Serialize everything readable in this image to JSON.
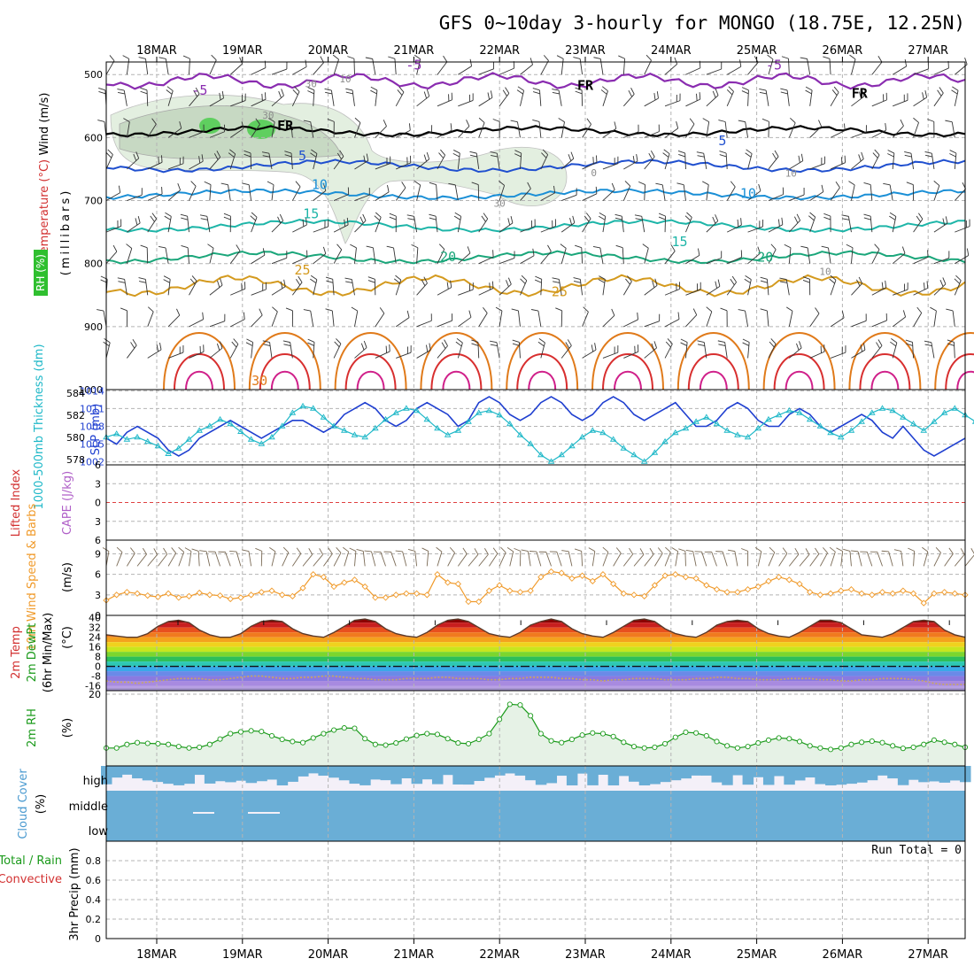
{
  "title": "GFS 0~10day 3-hourly for MONGO (18.75E, 12.25N)",
  "dates": [
    "18MAR",
    "19MAR",
    "20MAR",
    "21MAR",
    "22MAR",
    "23MAR",
    "24MAR",
    "25MAR",
    "26MAR",
    "27MAR"
  ],
  "colors": {
    "grid": "#b4b4b4",
    "temp_neg": "#8a2cb0",
    "temp_5": "#1f4fcf",
    "temp_10": "#1a8fd6",
    "temp_15": "#1db5a8",
    "temp_20": "#1aa67a",
    "temp_25": "#d49a1e",
    "temp_30": "#e07a1a",
    "temp_35": "#d82f2f",
    "temp_40": "#d0208a",
    "slp": "#1f3fd0",
    "thickness": "#1fb8c8",
    "wind10m": "#f09a2a",
    "rh2m": "#1a9a1a",
    "cloud": "#6aaed6",
    "rh_fill": "#e6f2e6"
  },
  "panels": {
    "upper": {
      "ylabel_left": [
        "RH (%)",
        "Temperature (°C)",
        "Wind (m/s)"
      ],
      "ylabel_right": "(millibars)",
      "levels": [
        500,
        600,
        700,
        800,
        900,
        1000
      ],
      "ylim": [
        480,
        1000
      ],
      "contour_labels": [
        {
          "text": "-5",
          "day": 0.5,
          "p": 532,
          "c": "temp_neg"
        },
        {
          "text": "-5",
          "day": 3.0,
          "p": 492,
          "c": "temp_neg"
        },
        {
          "text": "-5",
          "day": 7.2,
          "p": 492,
          "c": "temp_neg"
        },
        {
          "text": "FR",
          "day": 1.5,
          "p": 588,
          "c": "black"
        },
        {
          "text": "FR",
          "day": 5.0,
          "p": 524,
          "c": "black"
        },
        {
          "text": "FR",
          "day": 8.2,
          "p": 537,
          "c": "black"
        },
        {
          "text": "5",
          "day": 1.7,
          "p": 636,
          "c": "temp_5"
        },
        {
          "text": "5",
          "day": 6.6,
          "p": 612,
          "c": "temp_5"
        },
        {
          "text": "10",
          "day": 1.9,
          "p": 682,
          "c": "temp_10"
        },
        {
          "text": "10",
          "day": 6.9,
          "p": 696,
          "c": "temp_10"
        },
        {
          "text": "15",
          "day": 1.8,
          "p": 728,
          "c": "temp_15"
        },
        {
          "text": "15",
          "day": 6.1,
          "p": 772,
          "c": "temp_15"
        },
        {
          "text": "20",
          "day": 3.4,
          "p": 796,
          "c": "temp_20"
        },
        {
          "text": "20",
          "day": 7.1,
          "p": 797,
          "c": "temp_20"
        },
        {
          "text": "25",
          "day": 1.7,
          "p": 817,
          "c": "temp_25"
        },
        {
          "text": "25",
          "day": 4.7,
          "p": 852,
          "c": "temp_25"
        },
        {
          "text": "30",
          "day": 1.2,
          "p": 993,
          "c": "temp_30"
        },
        {
          "text": "30",
          "day": 1.8,
          "p": 520,
          "c": "grey"
        },
        {
          "text": "10",
          "day": 2.2,
          "p": 512,
          "c": "grey"
        },
        {
          "text": "30",
          "day": 4.0,
          "p": 710,
          "c": "grey"
        },
        {
          "text": "0",
          "day": 5.1,
          "p": 661,
          "c": "grey"
        },
        {
          "text": "10",
          "day": 7.4,
          "p": 662,
          "c": "grey"
        },
        {
          "text": "10",
          "day": 7.8,
          "p": 818,
          "c": "grey"
        },
        {
          "text": "30",
          "day": 1.3,
          "p": 570,
          "c": "grey"
        }
      ]
    },
    "slp_thickness": {
      "ylabel_left": "1000-500mb Thickness (dm)",
      "ylabel_right": "SLP (mb)",
      "left_ticks": [
        578,
        580,
        582,
        584
      ],
      "right_ticks": [
        1002,
        1005,
        1008,
        1011,
        1014
      ],
      "thickness_lim": [
        577.5,
        584.3
      ],
      "slp_lim": [
        1001.5,
        1014.2
      ],
      "slp": [
        1006,
        1005,
        1007,
        1008,
        1007,
        1006,
        1004,
        1003,
        1004,
        1006,
        1007,
        1008,
        1009,
        1008,
        1007,
        1006,
        1007,
        1008,
        1009,
        1009,
        1008,
        1007,
        1008,
        1010,
        1011,
        1012,
        1011,
        1009,
        1008,
        1009,
        1011,
        1012,
        1011,
        1010,
        1008,
        1009,
        1012,
        1013,
        1012,
        1010,
        1009,
        1010,
        1012,
        1013,
        1012,
        1010,
        1009,
        1010,
        1012,
        1013,
        1012,
        1010,
        1009,
        1010,
        1011,
        1012,
        1010,
        1008,
        1008,
        1009,
        1011,
        1012,
        1011,
        1009,
        1008,
        1008,
        1010,
        1011,
        1010,
        1008,
        1007,
        1008,
        1009,
        1010,
        1009,
        1007,
        1006,
        1008,
        1006,
        1004,
        1003,
        1004,
        1005,
        1006
      ],
      "thickness": [
        580,
        580.3,
        579.8,
        580,
        579.6,
        579.2,
        578.5,
        579,
        579.8,
        580.6,
        581,
        581.6,
        581.2,
        580.5,
        579.8,
        579.4,
        580,
        581,
        582.2,
        582.8,
        582.6,
        581.8,
        581,
        580.6,
        580.2,
        580,
        580.8,
        581.6,
        582.2,
        582.6,
        582.4,
        581.6,
        580.8,
        580.2,
        580.6,
        581.4,
        582.2,
        582.4,
        582,
        581.2,
        580.2,
        579.4,
        578.4,
        577.8,
        578.4,
        579.2,
        580,
        580.6,
        580.4,
        579.8,
        579,
        578.4,
        577.8,
        578.6,
        579.6,
        580.4,
        580.8,
        581.4,
        581.8,
        581.2,
        580.6,
        580.2,
        580,
        580.8,
        581.6,
        582,
        582.4,
        582.2,
        581.6,
        581,
        580.4,
        580,
        580.6,
        581.4,
        582.2,
        582.6,
        582.4,
        581.8,
        581.2,
        580.6,
        581.4,
        582.2,
        582.6,
        582,
        581.4,
        580.6
      ]
    },
    "li_cape": {
      "ylabel_left": "Lifted Index",
      "ylabel_right": "CAPE (J/kg)",
      "ticks": [
        -6,
        -3,
        0,
        3,
        6
      ],
      "lim": [
        -6,
        6
      ],
      "zero_line_color": "#e04040"
    },
    "wind10m": {
      "ylabel_left": "10m Wind Speed & Barbs",
      "ylabel_right": "(m/s)",
      "ticks": [
        0,
        3,
        6,
        9
      ],
      "lim": [
        0,
        11
      ],
      "speed": [
        2.2,
        3.0,
        3.4,
        3.2,
        2.9,
        2.7,
        3.2,
        2.6,
        2.8,
        3.3,
        3.0,
        2.9,
        2.4,
        2.6,
        3.0,
        3.4,
        3.6,
        3.0,
        2.8,
        4.0,
        6.0,
        5.6,
        4.2,
        4.8,
        5.2,
        4.2,
        2.6,
        2.6,
        3.0,
        3.2,
        3.2,
        3.0,
        6.0,
        4.8,
        4.6,
        2.0,
        2.0,
        3.6,
        4.4,
        3.6,
        3.4,
        3.6,
        5.6,
        6.4,
        6.2,
        5.4,
        5.8,
        5.0,
        6.0,
        4.6,
        3.2,
        3.0,
        2.8,
        4.4,
        5.8,
        6.0,
        5.6,
        5.4,
        4.4,
        3.8,
        3.4,
        3.4,
        3.8,
        4.2,
        5.0,
        5.6,
        5.2,
        4.6,
        3.4,
        3.0,
        3.2,
        3.6,
        3.8,
        3.2,
        3.0,
        3.4,
        3.2,
        3.6,
        3.2,
        1.8,
        3.2,
        3.4,
        3.2,
        3.0
      ]
    },
    "temp2m": {
      "ylabel_left": [
        "2m Temp",
        "2m DewPt",
        "(6hr Min/Max)"
      ],
      "ylabel_right": "(°C)",
      "ticks": [
        40,
        32,
        24,
        16,
        8,
        0,
        -8,
        -16
      ],
      "lim": [
        -20,
        42
      ],
      "temp": [
        26,
        25,
        24,
        24,
        27,
        33,
        37,
        38,
        36,
        30,
        26,
        24,
        24,
        27,
        33,
        37,
        38,
        37,
        31,
        27,
        25,
        24,
        28,
        33,
        38,
        39,
        37,
        31,
        27,
        25,
        24,
        28,
        34,
        38,
        39,
        37,
        32,
        27,
        25,
        24,
        28,
        34,
        37,
        39,
        37,
        31,
        27,
        25,
        24,
        28,
        33,
        38,
        39,
        37,
        31,
        27,
        25,
        24,
        28,
        34,
        37,
        38,
        37,
        31,
        27,
        25,
        24,
        28,
        33,
        38,
        38,
        36,
        31,
        26,
        25,
        24,
        27,
        32,
        37,
        38,
        37,
        30,
        26,
        24
      ],
      "dewpt": [
        -12,
        -13,
        -13,
        -14,
        -13,
        -12,
        -11,
        -10,
        -10,
        -10,
        -11,
        -11,
        -10,
        -9,
        -8,
        -8,
        -9,
        -10,
        -10,
        -9,
        -9,
        -8,
        -8,
        -9,
        -10,
        -10,
        -11,
        -11,
        -11,
        -10,
        -10,
        -10,
        -9,
        -9,
        -10,
        -10,
        -10,
        -11,
        -11,
        -10,
        -10,
        -9,
        -9,
        -9,
        -10,
        -10,
        -11,
        -11,
        -12,
        -11,
        -11,
        -10,
        -10,
        -10,
        -11,
        -11,
        -11,
        -10,
        -10,
        -9,
        -9,
        -10,
        -10,
        -11,
        -11,
        -11,
        -10,
        -10,
        -10,
        -11,
        -11,
        -12,
        -12,
        -11,
        -11,
        -10,
        -10,
        -10,
        -11,
        -12,
        -14,
        -15,
        -15,
        -15
      ]
    },
    "rh2m": {
      "ylabel_left": "2m RH",
      "ylabel_right": "(%)",
      "ticks": [
        20
      ],
      "lim": [
        0,
        21
      ],
      "rh": [
        5,
        5,
        6,
        6.5,
        6.3,
        6.2,
        6,
        5.4,
        5,
        5.2,
        6,
        7.5,
        9,
        9.5,
        9.8,
        9.6,
        8.4,
        7.4,
        6.8,
        6.5,
        7.8,
        9,
        10,
        10.6,
        10.5,
        7.6,
        6,
        5.8,
        6.4,
        7.5,
        8.5,
        9,
        8.8,
        7.6,
        6.4,
        6.2,
        7.4,
        9,
        13,
        17.2,
        17,
        14,
        9,
        7,
        6.5,
        7.4,
        8.6,
        9.2,
        9,
        8.2,
        6.6,
        5.4,
        5,
        5.2,
        6.2,
        8,
        9.4,
        9.2,
        8.4,
        6.8,
        5.6,
        5,
        5.4,
        6.4,
        7.2,
        7.8,
        7.6,
        6.8,
        5.6,
        5,
        4.6,
        5,
        6,
        6.6,
        6.9,
        6.5,
        5.6,
        4.9,
        5.2,
        6,
        7.2,
        6.6,
        6,
        5.2
      ]
    },
    "cloud": {
      "ylabel_left": "Cloud Cover",
      "ylabel_right": "(%)",
      "labels": [
        "high",
        "middle",
        "low"
      ]
    },
    "precip": {
      "ylabel_left": [
        "Total / Rain",
        "Convective"
      ],
      "ylabel_right": "3hr Precip (mm)",
      "ticks": [
        0,
        0.2,
        0.4,
        0.6,
        0.8
      ],
      "lim": [
        0,
        1
      ],
      "run_total_label": "Run Total = 0"
    }
  }
}
